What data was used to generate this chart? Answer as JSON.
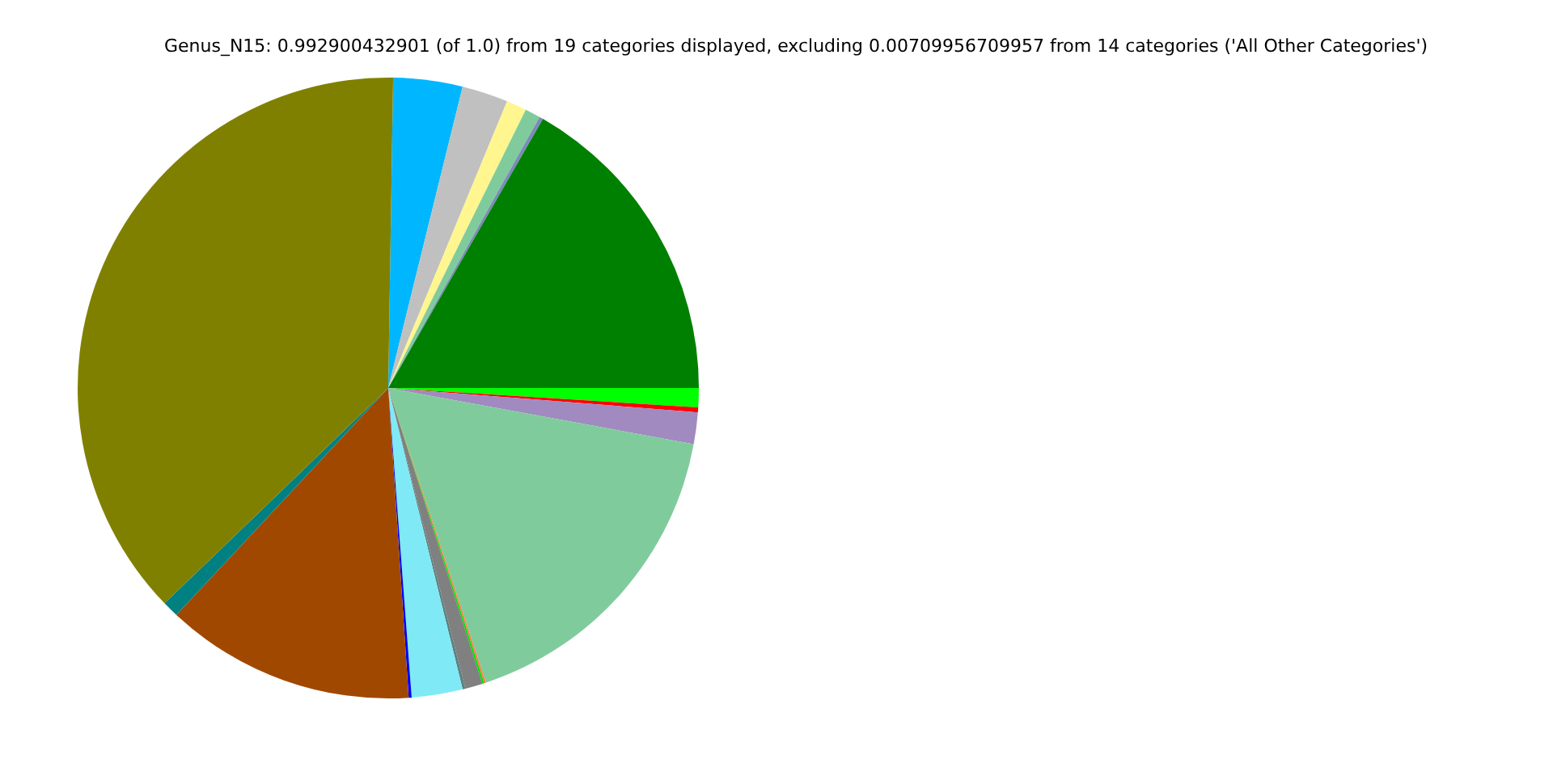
{
  "chart_data": {
    "type": "pie",
    "title": "Genus_N15: 0.992900432901 (of 1.0) from 19 categories displayed, excluding 0.00709956709957 from 14 categories ('All Other Categories')",
    "categories": [
      null,
      null,
      null,
      null,
      null,
      null,
      null,
      null,
      null,
      null,
      null,
      null,
      null,
      null,
      null,
      null,
      null,
      null,
      null
    ],
    "values": [
      3.6,
      2.4,
      1.05,
      0.8,
      0.2,
      16.7,
      1.0,
      0.25,
      1.65,
      17.0,
      0.1,
      0.1,
      0.9,
      0.15,
      2.65,
      0.15,
      13.0,
      0.85,
      37.45
    ],
    "colors": [
      "#00b7ff",
      "#c0c0c0",
      "#fff68f",
      "#80cb9c",
      "#7b8bb8",
      "#008000",
      "#00ff00",
      "#ff0000",
      "#a08ac0",
      "#80cb9c",
      "#ff7f50",
      "#00e000",
      "#808080",
      "#5f8080",
      "#7feaf5",
      "#0000ff",
      "#a14800",
      "#008080",
      "#808000"
    ],
    "legend": false
  }
}
